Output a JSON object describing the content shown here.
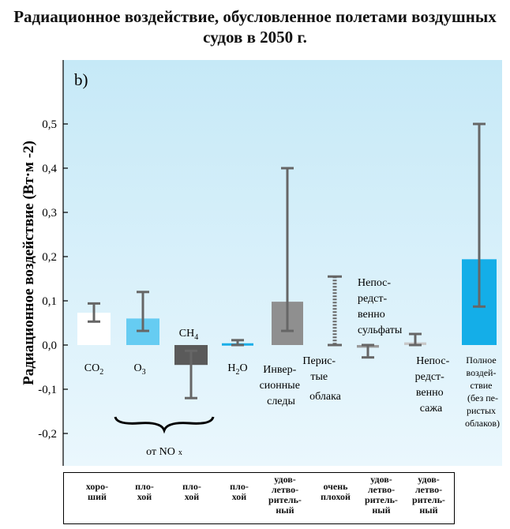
{
  "title": "Радиационное воздействие, обусловленное полетами воздушных судов в 2050 г.",
  "panel_label": "b)",
  "chart_data": {
    "type": "bar",
    "ylabel": "Радиационное воздействие (Вт·м -2)",
    "ylim": [
      -0.22,
      0.52
    ],
    "yticks": [
      "0,5",
      "0,4",
      "0,3",
      "0,2",
      "0,1",
      "0,0",
      "-0,1",
      "-0,2"
    ],
    "ytick_values": [
      0.5,
      0.4,
      0.3,
      0.2,
      0.1,
      0.0,
      -0.1,
      -0.2
    ],
    "grid": false,
    "categories": [
      {
        "label": "CO2",
        "value": 0.073,
        "err_low": 0.053,
        "err_high": 0.094,
        "color": "#ffffff"
      },
      {
        "label": "O3",
        "value": 0.06,
        "err_low": 0.032,
        "err_high": 0.12,
        "color": "#66ccf2"
      },
      {
        "label": "CH4",
        "value": -0.045,
        "err_low": -0.12,
        "err_high": -0.013,
        "color": "#5a5a5a"
      },
      {
        "label": "H2O",
        "value": 0.004,
        "err_low": 0.0,
        "err_high": 0.011,
        "color": "#1aaee8"
      },
      {
        "label": "Инверсионные следы",
        "value": 0.098,
        "err_low": 0.032,
        "err_high": 0.4,
        "color": "#8f8f8f"
      },
      {
        "label": "Перистые облака",
        "value": null,
        "err_low": 0.0,
        "err_high": 0.155,
        "color": "#6b6b6b"
      },
      {
        "label": "Непосредственно сульфаты",
        "value": -0.006,
        "err_low": -0.028,
        "err_high": 0.0,
        "color": "#9a9a9a"
      },
      {
        "label": "Непосредственно сажа",
        "value": 0.006,
        "err_low": 0.0,
        "err_high": 0.025,
        "color": "#c8c8c8"
      },
      {
        "label": "Полное воздействие (без перистых облаков)",
        "value": 0.194,
        "err_low": 0.087,
        "err_high": 0.5,
        "color": "#14aee8"
      }
    ],
    "group_label": "от NO x"
  },
  "labels": {
    "co2": "CO",
    "co2_sub": "2",
    "o3": "O",
    "o3_sub": "3",
    "ch4": "CH",
    "ch4_sub": "4",
    "h2o_a": "H",
    "h2o_sub": "2",
    "h2o_b": "O",
    "contrails": [
      "Инвер-",
      "сионные",
      "следы"
    ],
    "cirrus": [
      "Перис-",
      "тые",
      "облака"
    ],
    "sulfate": [
      "Непос-",
      "редст-",
      "венно",
      "сульфаты"
    ],
    "soot": [
      "Непос-",
      "редст-",
      "венно",
      "сажа"
    ],
    "total": [
      "Полное",
      "воздей-",
      "ствие",
      "(без пе-",
      "ристых",
      "облаков)"
    ],
    "nox": "от NO",
    "nox_sub": "x"
  },
  "quality": [
    [
      "хоро-",
      "ший"
    ],
    [
      "пло-",
      "хой"
    ],
    [
      "пло-",
      "хой"
    ],
    [
      "пло-",
      "хой"
    ],
    [
      "удов-",
      "летво-",
      "ритель-",
      "ный"
    ],
    [
      "очень",
      "плохой"
    ],
    [
      "удов-",
      "летво-",
      "ритель-",
      "ный"
    ],
    [
      "удов-",
      "летво-",
      "ритель-",
      "ный"
    ]
  ]
}
